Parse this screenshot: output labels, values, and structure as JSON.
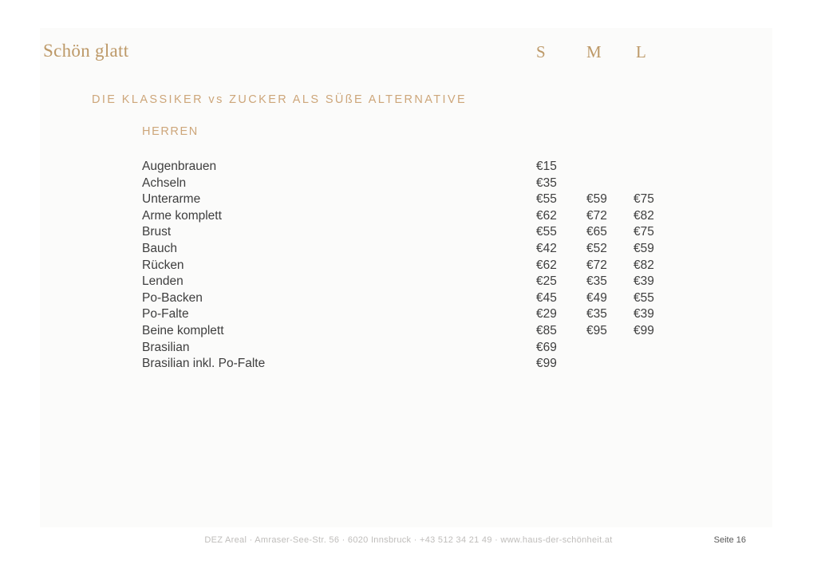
{
  "title": "Schön glatt",
  "size_headers": [
    "S",
    "M",
    "L"
  ],
  "section_heading": "DIE KLASSIKER vs ZUCKER ALS SÜßE ALTERNATIVE",
  "group_heading": "HERREN",
  "price_rows": [
    {
      "label": "Augenbrauen",
      "s": "€15",
      "m": "",
      "l": ""
    },
    {
      "label": "Achseln",
      "s": "€35",
      "m": "",
      "l": ""
    },
    {
      "label": "Unterarme",
      "s": "€55",
      "m": "€59",
      "l": "€75"
    },
    {
      "label": "Arme komplett",
      "s": "€62",
      "m": "€72",
      "l": "€82"
    },
    {
      "label": "Brust",
      "s": "€55",
      "m": "€65",
      "l": "€75"
    },
    {
      "label": "Bauch",
      "s": "€42",
      "m": "€52",
      "l": "€59"
    },
    {
      "label": "Rücken",
      "s": "€62",
      "m": "€72",
      "l": "€82"
    },
    {
      "label": "Lenden",
      "s": "€25",
      "m": "€35",
      "l": "€39"
    },
    {
      "label": "Po-Backen",
      "s": "€45",
      "m": "€49",
      "l": "€55"
    },
    {
      "label": "Po-Falte",
      "s": "€29",
      "m": "€35",
      "l": "€39"
    },
    {
      "label": "Beine komplett",
      "s": "€85",
      "m": "€95",
      "l": "€99"
    },
    {
      "label": "Brasilian",
      "s": "€69",
      "m": "",
      "l": ""
    },
    {
      "label": "Brasilian inkl. Po-Falte",
      "s": "€99",
      "m": "",
      "l": ""
    }
  ],
  "footer": {
    "address": "DEZ Areal · Amraser-See-Str. 56 · 6020 Innsbruck · +43 512 34 21 49 · www.haus-der-schönheit.at",
    "page_label": "Seite 16"
  },
  "colors": {
    "accent_gold": "#bd9968",
    "accent_gold_light": "#cda67a",
    "body_text": "#3e3e3e",
    "footer_text": "#bfbdbb",
    "page_number_text": "#585858",
    "card_background": "#fbfbfa"
  }
}
